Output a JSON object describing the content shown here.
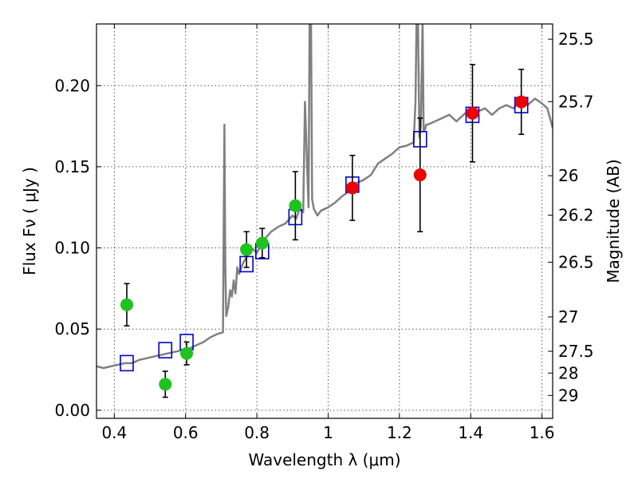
{
  "chart_data": {
    "type": "scatter",
    "xlabel": "Wavelength  λ (μm)",
    "ylabel": "Flux  Fν  ( μJy )",
    "y2label": "Magnitude (AB)",
    "xlim": [
      0.35,
      1.63
    ],
    "ylim": [
      -0.005,
      0.238
    ],
    "x_ticks": [
      0.4,
      0.6,
      0.8,
      1.0,
      1.2,
      1.4,
      1.6
    ],
    "x_tick_labels": [
      "0.4",
      "0.6",
      "0.8",
      "1",
      "1.2",
      "1.4",
      "1.6"
    ],
    "y_ticks": [
      0.0,
      0.05,
      0.1,
      0.15,
      0.2
    ],
    "y_tick_labels": [
      "0.00",
      "0.05",
      "0.10",
      "0.15",
      "0.20"
    ],
    "mag_ticks": [
      {
        "label": "25.5",
        "flux": 0.2286
      },
      {
        "label": "25.7",
        "flux": 0.1901
      },
      {
        "label": "26",
        "flux": 0.1445
      },
      {
        "label": "26.2",
        "flux": 0.1202
      },
      {
        "label": "26.5",
        "flux": 0.0912
      },
      {
        "label": "27",
        "flux": 0.0575
      },
      {
        "label": "27.5",
        "flux": 0.0363
      },
      {
        "label": "28",
        "flux": 0.0229
      },
      {
        "label": "29",
        "flux": 0.0091
      }
    ],
    "grid": true,
    "colors": {
      "model": "#808080",
      "model_box": "#0000cc",
      "optical_points": "#1ec31e",
      "nir_points": "#ee0000",
      "errorbar": "#000000"
    },
    "series": [
      {
        "name": "model_spectrum",
        "kind": "line",
        "x": [
          0.35,
          0.37,
          0.39,
          0.41,
          0.43,
          0.45,
          0.47,
          0.49,
          0.51,
          0.53,
          0.55,
          0.57,
          0.59,
          0.61,
          0.63,
          0.65,
          0.67,
          0.69,
          0.705,
          0.709,
          0.7115,
          0.714,
          0.72,
          0.725,
          0.73,
          0.735,
          0.74,
          0.745,
          0.75,
          0.76,
          0.775,
          0.785,
          0.8,
          0.82,
          0.84,
          0.86,
          0.88,
          0.9,
          0.91,
          0.92,
          0.93,
          0.935,
          0.945,
          0.948,
          0.952,
          0.955,
          0.96,
          0.97,
          0.98,
          1.0,
          1.02,
          1.04,
          1.06,
          1.08,
          1.1,
          1.12,
          1.14,
          1.16,
          1.18,
          1.2,
          1.22,
          1.24,
          1.245,
          1.248,
          1.252,
          1.256,
          1.26,
          1.265,
          1.268,
          1.272,
          1.275,
          1.28,
          1.3,
          1.32,
          1.34,
          1.36,
          1.38,
          1.4,
          1.42,
          1.44,
          1.46,
          1.48,
          1.5,
          1.52,
          1.54,
          1.56,
          1.58,
          1.6,
          1.615,
          1.63
        ],
        "y": [
          0.027,
          0.026,
          0.027,
          0.028,
          0.029,
          0.029,
          0.031,
          0.032,
          0.033,
          0.034,
          0.035,
          0.036,
          0.037,
          0.038,
          0.04,
          0.042,
          0.045,
          0.047,
          0.048,
          0.176,
          0.09,
          0.058,
          0.064,
          0.074,
          0.07,
          0.08,
          0.072,
          0.088,
          0.084,
          0.09,
          0.096,
          0.1,
          0.097,
          0.105,
          0.11,
          0.113,
          0.115,
          0.12,
          0.118,
          0.124,
          0.122,
          0.19,
          0.125,
          0.24,
          0.24,
          0.13,
          0.124,
          0.12,
          0.123,
          0.125,
          0.128,
          0.132,
          0.135,
          0.14,
          0.142,
          0.145,
          0.152,
          0.155,
          0.158,
          0.162,
          0.163,
          0.165,
          0.19,
          0.24,
          0.24,
          0.168,
          0.175,
          0.24,
          0.172,
          0.173,
          0.176,
          0.176,
          0.178,
          0.18,
          0.182,
          0.178,
          0.182,
          0.186,
          0.184,
          0.186,
          0.182,
          0.186,
          0.188,
          0.186,
          0.191,
          0.188,
          0.192,
          0.189,
          0.186,
          0.174
        ]
      },
      {
        "name": "model_photometry",
        "kind": "square",
        "x": [
          0.435,
          0.543,
          0.603,
          0.771,
          0.815,
          0.908,
          1.068,
          1.258,
          1.405,
          1.542
        ],
        "y": [
          0.029,
          0.037,
          0.042,
          0.09,
          0.098,
          0.119,
          0.139,
          0.167,
          0.182,
          0.188
        ]
      },
      {
        "name": "optical_photometry",
        "kind": "point",
        "x": [
          0.435,
          0.543,
          0.603,
          0.771,
          0.815,
          0.908
        ],
        "y": [
          0.065,
          0.016,
          0.035,
          0.099,
          0.103,
          0.126
        ],
        "yerr": [
          0.013,
          0.008,
          0.007,
          0.011,
          0.009,
          0.021
        ]
      },
      {
        "name": "nir_photometry",
        "kind": "point",
        "x": [
          1.068,
          1.258,
          1.405,
          1.542
        ],
        "y": [
          0.137,
          0.145,
          0.183,
          0.19
        ],
        "yerr": [
          0.02,
          0.035,
          0.03,
          0.02
        ]
      }
    ]
  }
}
